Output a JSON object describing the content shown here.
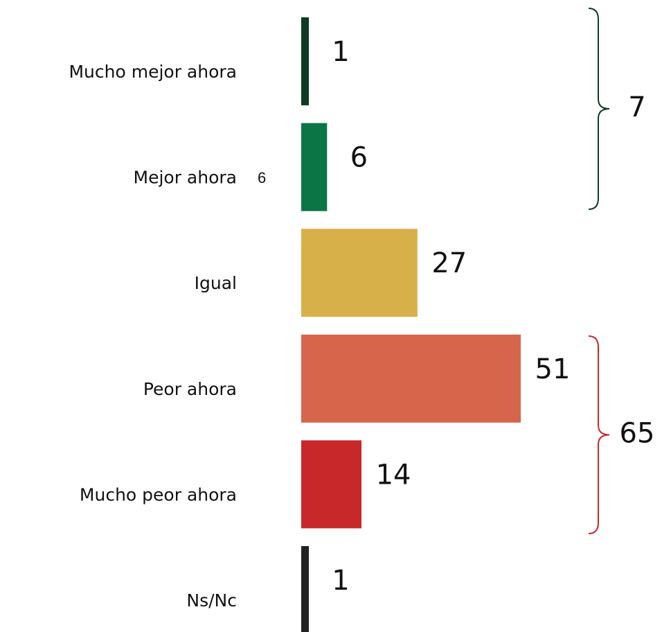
{
  "chart_data": {
    "type": "bar",
    "categories": [
      "Mucho mejor ahora",
      "Mejor ahora",
      "Igual",
      "Peor ahora",
      "Mucho peor ahora",
      "Ns/Nc"
    ],
    "values": [
      1,
      6,
      27,
      51,
      14,
      1
    ],
    "colors": [
      "#0d3b24",
      "#0b7546",
      "#d8b04a",
      "#d6654b",
      "#c9282a",
      "#222222"
    ],
    "side_note": "6",
    "brackets": [
      {
        "value": 7,
        "color": "#0d3b24"
      },
      {
        "value": 65,
        "color": "#c9282a"
      }
    ]
  }
}
